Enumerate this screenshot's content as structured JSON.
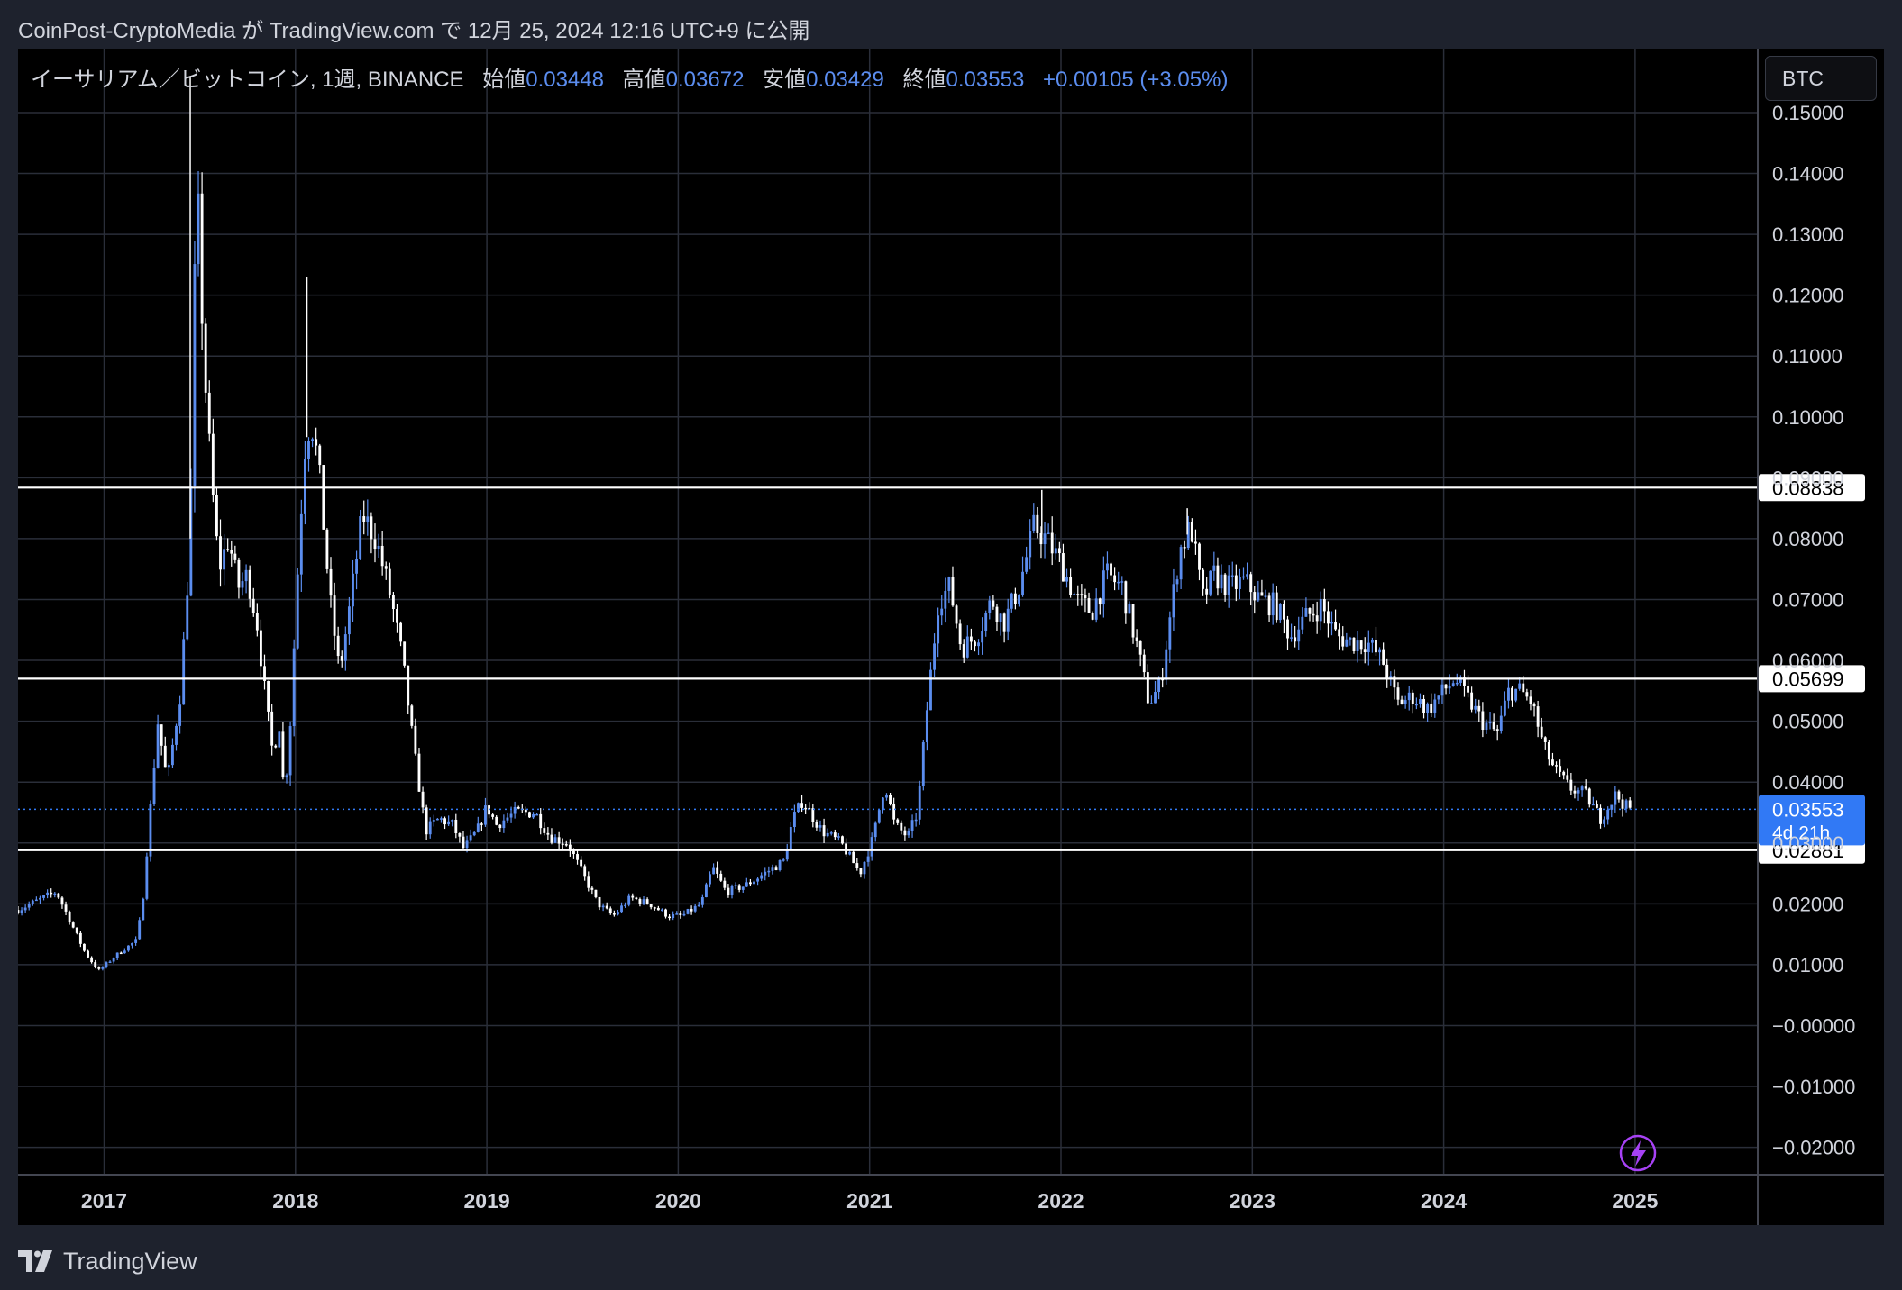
{
  "header": {
    "publisher": "CoinPost-CryptoMedia が TradingView.com で 12月 25, 2024 12:16 UTC+9 に公開"
  },
  "legend": {
    "symbol": "イーサリアム／ビットコイン, 1週, BINANCE",
    "open_label": "始値",
    "open": "0.03448",
    "high_label": "高値",
    "high": "0.03672",
    "low_label": "安値",
    "low": "0.03429",
    "close_label": "終値",
    "close": "0.03553",
    "change": "+0.00105 (+3.05%)"
  },
  "currency_button": "BTC",
  "footer": {
    "brand": "TradingView"
  },
  "icons": {
    "logo": "tradingview-logo-icon",
    "alert": "lightning-icon"
  },
  "colors": {
    "up": "#5b8def",
    "down": "#ffffff",
    "grid": "#2a2e39",
    "price_tag": "#3179f5",
    "alert": "#a742f5"
  },
  "chart_data": {
    "type": "candlestick",
    "interval": "1W",
    "y_ticks": [
      "0.15000",
      "0.14000",
      "0.13000",
      "0.12000",
      "0.11000",
      "0.10000",
      "0.09000",
      "0.08000",
      "0.07000",
      "0.06000",
      "0.05000",
      "0.04000",
      "0.03000",
      "0.02000",
      "0.01000",
      "−0.00000",
      "−0.01000",
      "−0.02000"
    ],
    "x_ticks": [
      "2017",
      "2018",
      "2019",
      "2020",
      "2021",
      "2022",
      "2023",
      "2024",
      "2025"
    ],
    "ylim": [
      -0.0245,
      0.1605
    ],
    "horizontal_lines": [
      {
        "value": 0.08838,
        "label": "0.08838"
      },
      {
        "value": 0.05699,
        "label": "0.05699"
      },
      {
        "value": 0.02881,
        "label": "0.02881"
      }
    ],
    "last_price": {
      "value": 0.03553,
      "label": "0.03553",
      "countdown": "4d 21h"
    },
    "price_path": [
      [
        2016.55,
        0.019
      ],
      [
        2016.75,
        0.022
      ],
      [
        2016.9,
        0.012
      ],
      [
        2016.97,
        0.009
      ],
      [
        2017.08,
        0.012
      ],
      [
        2017.17,
        0.014
      ],
      [
        2017.2,
        0.02
      ],
      [
        2017.28,
        0.05
      ],
      [
        2017.33,
        0.04
      ],
      [
        2017.4,
        0.055
      ],
      [
        2017.45,
        0.08
      ],
      [
        2017.47,
        0.12
      ],
      [
        2017.49,
        0.135
      ],
      [
        2017.52,
        0.11
      ],
      [
        2017.56,
        0.09
      ],
      [
        2017.6,
        0.075
      ],
      [
        2017.65,
        0.08
      ],
      [
        2017.7,
        0.072
      ],
      [
        2017.75,
        0.074
      ],
      [
        2017.8,
        0.066
      ],
      [
        2017.85,
        0.052
      ],
      [
        2017.88,
        0.045
      ],
      [
        2017.92,
        0.05
      ],
      [
        2017.94,
        0.037
      ],
      [
        2017.97,
        0.048
      ],
      [
        2018.02,
        0.08
      ],
      [
        2018.05,
        0.095
      ],
      [
        2018.08,
        0.1
      ],
      [
        2018.12,
        0.092
      ],
      [
        2018.18,
        0.07
      ],
      [
        2018.23,
        0.058
      ],
      [
        2018.28,
        0.068
      ],
      [
        2018.35,
        0.084
      ],
      [
        2018.42,
        0.08
      ],
      [
        2018.5,
        0.07
      ],
      [
        2018.56,
        0.06
      ],
      [
        2018.62,
        0.045
      ],
      [
        2018.68,
        0.032
      ],
      [
        2018.75,
        0.034
      ],
      [
        2018.82,
        0.033
      ],
      [
        2018.88,
        0.029
      ],
      [
        2018.95,
        0.032
      ],
      [
        2019.0,
        0.036
      ],
      [
        2019.05,
        0.033
      ],
      [
        2019.15,
        0.035
      ],
      [
        2019.25,
        0.035
      ],
      [
        2019.33,
        0.031
      ],
      [
        2019.42,
        0.03
      ],
      [
        2019.5,
        0.025
      ],
      [
        2019.58,
        0.02
      ],
      [
        2019.66,
        0.018
      ],
      [
        2019.75,
        0.021
      ],
      [
        2019.85,
        0.02
      ],
      [
        2019.95,
        0.018
      ],
      [
        2020.02,
        0.018
      ],
      [
        2020.12,
        0.02
      ],
      [
        2020.18,
        0.026
      ],
      [
        2020.25,
        0.022
      ],
      [
        2020.35,
        0.023
      ],
      [
        2020.45,
        0.025
      ],
      [
        2020.55,
        0.027
      ],
      [
        2020.6,
        0.034
      ],
      [
        2020.65,
        0.037
      ],
      [
        2020.75,
        0.032
      ],
      [
        2020.85,
        0.03
      ],
      [
        2020.95,
        0.025
      ],
      [
        2021.02,
        0.031
      ],
      [
        2021.08,
        0.04
      ],
      [
        2021.13,
        0.033
      ],
      [
        2021.2,
        0.031
      ],
      [
        2021.25,
        0.035
      ],
      [
        2021.3,
        0.052
      ],
      [
        2021.36,
        0.07
      ],
      [
        2021.42,
        0.072
      ],
      [
        2021.48,
        0.062
      ],
      [
        2021.56,
        0.064
      ],
      [
        2021.64,
        0.07
      ],
      [
        2021.7,
        0.066
      ],
      [
        2021.78,
        0.072
      ],
      [
        2021.86,
        0.082
      ],
      [
        2021.92,
        0.08
      ],
      [
        2022.0,
        0.076
      ],
      [
        2022.08,
        0.07
      ],
      [
        2022.16,
        0.068
      ],
      [
        2022.24,
        0.074
      ],
      [
        2022.32,
        0.072
      ],
      [
        2022.4,
        0.062
      ],
      [
        2022.46,
        0.053
      ],
      [
        2022.52,
        0.056
      ],
      [
        2022.56,
        0.065
      ],
      [
        2022.62,
        0.078
      ],
      [
        2022.68,
        0.082
      ],
      [
        2022.74,
        0.07
      ],
      [
        2022.8,
        0.074
      ],
      [
        2022.88,
        0.072
      ],
      [
        2022.96,
        0.073
      ],
      [
        2023.04,
        0.07
      ],
      [
        2023.12,
        0.069
      ],
      [
        2023.2,
        0.064
      ],
      [
        2023.28,
        0.067
      ],
      [
        2023.36,
        0.069
      ],
      [
        2023.44,
        0.064
      ],
      [
        2023.52,
        0.063
      ],
      [
        2023.6,
        0.063
      ],
      [
        2023.68,
        0.06
      ],
      [
        2023.76,
        0.053
      ],
      [
        2023.84,
        0.054
      ],
      [
        2023.92,
        0.052
      ],
      [
        2024.0,
        0.055
      ],
      [
        2024.06,
        0.057
      ],
      [
        2024.12,
        0.054
      ],
      [
        2024.2,
        0.05
      ],
      [
        2024.28,
        0.048
      ],
      [
        2024.34,
        0.055
      ],
      [
        2024.4,
        0.055
      ],
      [
        2024.46,
        0.053
      ],
      [
        2024.52,
        0.046
      ],
      [
        2024.58,
        0.042
      ],
      [
        2024.66,
        0.039
      ],
      [
        2024.74,
        0.038
      ],
      [
        2024.82,
        0.034
      ],
      [
        2024.9,
        0.038
      ],
      [
        2024.95,
        0.036
      ],
      [
        2024.98,
        0.0355
      ]
    ],
    "spikes": [
      [
        2017.45,
        0.156
      ],
      [
        2018.06,
        0.123
      ],
      [
        2021.9,
        0.088
      ],
      [
        2022.66,
        0.085
      ]
    ]
  }
}
